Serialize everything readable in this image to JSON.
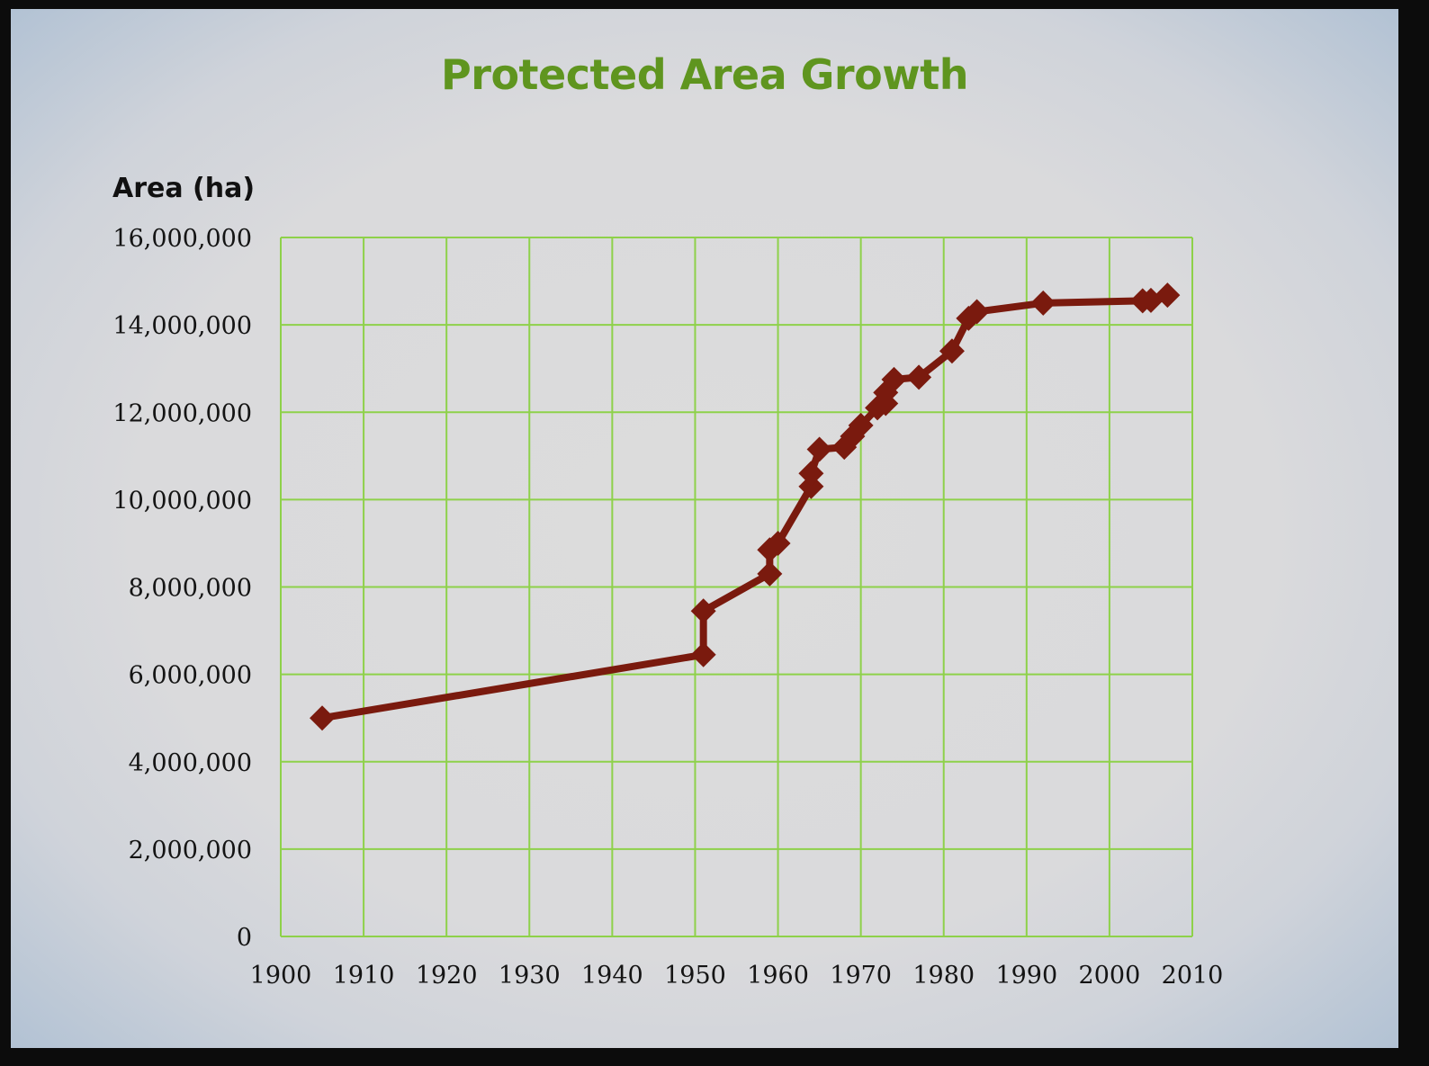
{
  "chart_data": {
    "type": "line",
    "title": "Protected Area Growth",
    "ylabel": "Area (ha)",
    "xlabel": "",
    "xlim": [
      1900,
      2010
    ],
    "ylim": [
      0,
      16000000
    ],
    "x_ticks": [
      1900,
      1910,
      1920,
      1930,
      1940,
      1950,
      1960,
      1970,
      1980,
      1990,
      2000,
      2010
    ],
    "y_ticks": [
      0,
      2000000,
      4000000,
      6000000,
      8000000,
      10000000,
      12000000,
      14000000,
      16000000
    ],
    "x_tick_labels": [
      "1900",
      "1910",
      "1920",
      "1930",
      "1940",
      "1950",
      "1960",
      "1970",
      "1980",
      "1990",
      "2000",
      "2010"
    ],
    "y_tick_labels": [
      "0",
      "2,000,000",
      "4,000,000",
      "6,000,000",
      "8,000,000",
      "10,000,000",
      "12,000,000",
      "14,000,000",
      "16,000,000"
    ],
    "grid": true,
    "colors": {
      "title": "#5f951f",
      "grid": "#8ed14a",
      "line": "#7a1a0e",
      "marker": "#7a1a0e"
    },
    "series": [
      {
        "marker": "diamond",
        "points": [
          [
            1905,
            5000000
          ],
          [
            1951,
            6450000
          ],
          [
            1951,
            7450000
          ],
          [
            1959,
            8300000
          ],
          [
            1959,
            8850000
          ],
          [
            1960,
            9000000
          ],
          [
            1964,
            10300000
          ],
          [
            1964,
            10600000
          ],
          [
            1965,
            11150000
          ],
          [
            1968,
            11200000
          ],
          [
            1969,
            11450000
          ],
          [
            1970,
            11700000
          ],
          [
            1972,
            12100000
          ],
          [
            1973,
            12200000
          ],
          [
            1973,
            12450000
          ],
          [
            1974,
            12750000
          ],
          [
            1977,
            12800000
          ],
          [
            1981,
            13400000
          ],
          [
            1983,
            14150000
          ],
          [
            1984,
            14300000
          ],
          [
            1992,
            14500000
          ],
          [
            2004,
            14550000
          ],
          [
            2005,
            14560000
          ],
          [
            2007,
            14680000
          ]
        ]
      }
    ]
  }
}
